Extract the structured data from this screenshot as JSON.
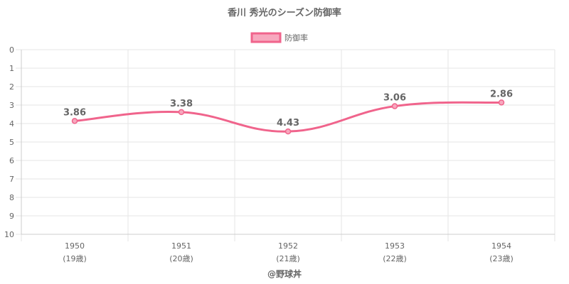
{
  "chart_data": {
    "type": "line",
    "title": "香川 秀光のシーズン防御率",
    "legend": {
      "label": "防御率",
      "placement": "top-center"
    },
    "categories": [
      {
        "year": "1950",
        "age": "(19歳)"
      },
      {
        "year": "1951",
        "age": "(20歳)"
      },
      {
        "year": "1952",
        "age": "(21歳)"
      },
      {
        "year": "1953",
        "age": "(22歳)"
      },
      {
        "year": "1954",
        "age": "(23歳)"
      }
    ],
    "series": [
      {
        "name": "防御率",
        "values": [
          3.86,
          3.38,
          4.43,
          3.06,
          2.86
        ],
        "labels": [
          "3.86",
          "3.38",
          "4.43",
          "3.06",
          "2.86"
        ]
      }
    ],
    "ylim": [
      0,
      10
    ],
    "y_reversed": true,
    "yticks": [
      0,
      1,
      2,
      3,
      4,
      5,
      6,
      7,
      8,
      9,
      10
    ],
    "grid": true,
    "colors": {
      "line": "#f0648c",
      "fill": "#f7a8be",
      "text": "#666666",
      "grid": "#e5e5e5",
      "axis": "#cccccc"
    }
  },
  "footer": {
    "credit": "@野球丼"
  }
}
